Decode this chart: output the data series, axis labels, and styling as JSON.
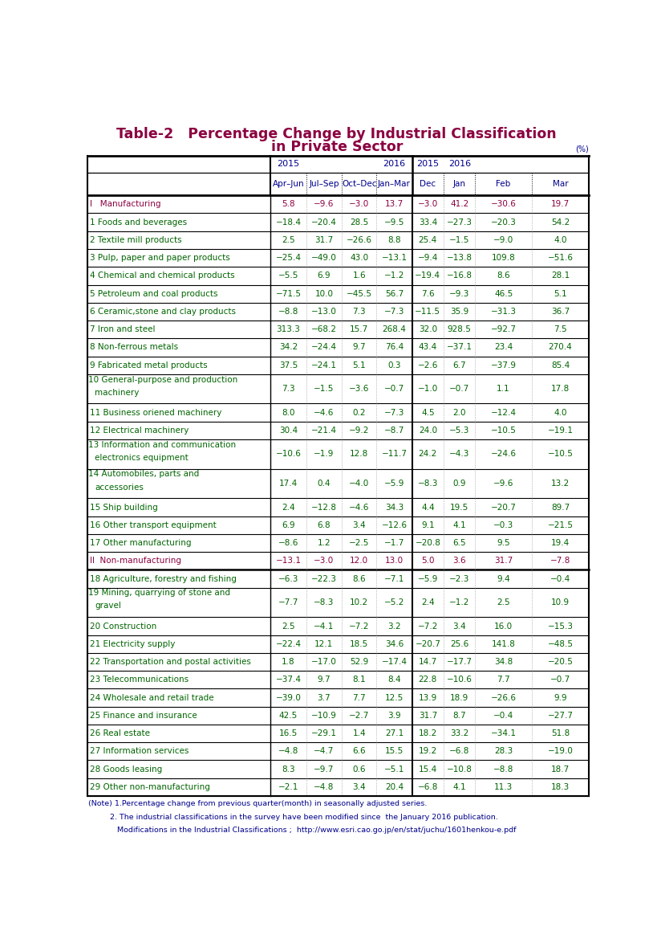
{
  "title_line1": "Table-2   Percentage Change by Industrial Classification",
  "title_line2": "in Private Sector",
  "title_color": "#8B0040",
  "unit_label": "(%)",
  "col_header_color": "#00008B",
  "rows": [
    {
      "label": "I   Manufacturing",
      "values": [
        "5.8",
        "−9.6",
        "−3.0",
        "13.7",
        "−3.0",
        "41.2",
        "−30.6",
        "19.7"
      ],
      "label_color": "#8B0040",
      "val_color": "#8B0040",
      "is_section": true,
      "multiline": false
    },
    {
      "label": "1 Foods and beverages",
      "values": [
        "−18.4",
        "−20.4",
        "28.5",
        "−9.5",
        "33.4",
        "−27.3",
        "−20.3",
        "54.2"
      ],
      "label_color": "#006400",
      "val_color": "#006400",
      "is_section": false,
      "multiline": false
    },
    {
      "label": "2 Textile mill products",
      "values": [
        "2.5",
        "31.7",
        "−26.6",
        "8.8",
        "25.4",
        "−1.5",
        "−9.0",
        "4.0"
      ],
      "label_color": "#006400",
      "val_color": "#006400",
      "is_section": false,
      "multiline": false
    },
    {
      "label": "3 Pulp, paper and paper products",
      "values": [
        "−25.4",
        "−49.0",
        "43.0",
        "−13.1",
        "−9.4",
        "−13.8",
        "109.8",
        "−51.6"
      ],
      "label_color": "#006400",
      "val_color": "#006400",
      "is_section": false,
      "multiline": false
    },
    {
      "label": "4 Chemical and chemical products",
      "values": [
        "−5.5",
        "6.9",
        "1.6",
        "−1.2",
        "−19.4",
        "−16.8",
        "8.6",
        "28.1"
      ],
      "label_color": "#006400",
      "val_color": "#006400",
      "is_section": false,
      "multiline": false
    },
    {
      "label": "5 Petroleum and coal products",
      "values": [
        "−71.5",
        "10.0",
        "−45.5",
        "56.7",
        "7.6",
        "−9.3",
        "46.5",
        "5.1"
      ],
      "label_color": "#006400",
      "val_color": "#006400",
      "is_section": false,
      "multiline": false
    },
    {
      "label": "6 Ceramic,stone and clay products",
      "values": [
        "−8.8",
        "−13.0",
        "7.3",
        "−7.3",
        "−11.5",
        "35.9",
        "−31.3",
        "36.7"
      ],
      "label_color": "#006400",
      "val_color": "#006400",
      "is_section": false,
      "multiline": false
    },
    {
      "label": "7 Iron and steel",
      "values": [
        "313.3",
        "−68.2",
        "15.7",
        "268.4",
        "32.0",
        "928.5",
        "−92.7",
        "7.5"
      ],
      "label_color": "#006400",
      "val_color": "#006400",
      "is_section": false,
      "multiline": false
    },
    {
      "label": "8 Non-ferrous metals",
      "values": [
        "34.2",
        "−24.4",
        "9.7",
        "76.4",
        "43.4",
        "−37.1",
        "23.4",
        "270.4"
      ],
      "label_color": "#006400",
      "val_color": "#006400",
      "is_section": false,
      "multiline": false
    },
    {
      "label": "9 Fabricated metal products",
      "values": [
        "37.5",
        "−24.1",
        "5.1",
        "0.3",
        "−2.6",
        "6.7",
        "−37.9",
        "85.4"
      ],
      "label_color": "#006400",
      "val_color": "#006400",
      "is_section": false,
      "multiline": false
    },
    {
      "label1": "10 General-purpose and production",
      "label2": "    machinery",
      "values": [
        "7.3",
        "−1.5",
        "−3.6",
        "−0.7",
        "−1.0",
        "−0.7",
        "1.1",
        "17.8"
      ],
      "label_color": "#006400",
      "val_color": "#006400",
      "is_section": false,
      "multiline": true
    },
    {
      "label": "11 Business oriened machinery",
      "values": [
        "8.0",
        "−4.6",
        "0.2",
        "−7.3",
        "4.5",
        "2.0",
        "−12.4",
        "4.0"
      ],
      "label_color": "#006400",
      "val_color": "#006400",
      "is_section": false,
      "multiline": false
    },
    {
      "label": "12 Electrical machinery",
      "values": [
        "30.4",
        "−21.4",
        "−9.2",
        "−8.7",
        "24.0",
        "−5.3",
        "−10.5",
        "−19.1"
      ],
      "label_color": "#006400",
      "val_color": "#006400",
      "is_section": false,
      "multiline": false
    },
    {
      "label1": "13 Information and communication",
      "label2": "    electronics equipment",
      "values": [
        "−10.6",
        "−1.9",
        "12.8",
        "−11.7",
        "24.2",
        "−4.3",
        "−24.6",
        "−10.5"
      ],
      "label_color": "#006400",
      "val_color": "#006400",
      "is_section": false,
      "multiline": true
    },
    {
      "label1": "14 Automobiles, parts and",
      "label2": "    accessories",
      "values": [
        "17.4",
        "0.4",
        "−4.0",
        "−5.9",
        "−8.3",
        "0.9",
        "−9.6",
        "13.2"
      ],
      "label_color": "#006400",
      "val_color": "#006400",
      "is_section": false,
      "multiline": true
    },
    {
      "label": "15 Ship building",
      "values": [
        "2.4",
        "−12.8",
        "−4.6",
        "34.3",
        "4.4",
        "19.5",
        "−20.7",
        "89.7"
      ],
      "label_color": "#006400",
      "val_color": "#006400",
      "is_section": false,
      "multiline": false
    },
    {
      "label": "16 Other transport equipment",
      "values": [
        "6.9",
        "6.8",
        "3.4",
        "−12.6",
        "9.1",
        "4.1",
        "−0.3",
        "−21.5"
      ],
      "label_color": "#006400",
      "val_color": "#006400",
      "is_section": false,
      "multiline": false
    },
    {
      "label": "17 Other manufacturing",
      "values": [
        "−8.6",
        "1.2",
        "−2.5",
        "−1.7",
        "−20.8",
        "6.5",
        "9.5",
        "19.4"
      ],
      "label_color": "#006400",
      "val_color": "#006400",
      "is_section": false,
      "multiline": false
    },
    {
      "label": "II  Non-manufacturing",
      "values": [
        "−13.1",
        "−3.0",
        "12.0",
        "13.0",
        "5.0",
        "3.6",
        "31.7",
        "−7.8"
      ],
      "label_color": "#8B0040",
      "val_color": "#8B0040",
      "is_section": true,
      "multiline": false
    },
    {
      "label": "18 Agriculture, forestry and fishing",
      "values": [
        "−6.3",
        "−22.3",
        "8.6",
        "−7.1",
        "−5.9",
        "−2.3",
        "9.4",
        "−0.4"
      ],
      "label_color": "#006400",
      "val_color": "#006400",
      "is_section": false,
      "multiline": false
    },
    {
      "label1": "19 Mining, quarrying of stone and",
      "label2": "    gravel",
      "values": [
        "−7.7",
        "−8.3",
        "10.2",
        "−5.2",
        "2.4",
        "−1.2",
        "2.5",
        "10.9"
      ],
      "label_color": "#006400",
      "val_color": "#006400",
      "is_section": false,
      "multiline": true
    },
    {
      "label": "20 Construction",
      "values": [
        "2.5",
        "−4.1",
        "−7.2",
        "3.2",
        "−7.2",
        "3.4",
        "16.0",
        "−15.3"
      ],
      "label_color": "#006400",
      "val_color": "#006400",
      "is_section": false,
      "multiline": false
    },
    {
      "label": "21 Electricity supply",
      "values": [
        "−22.4",
        "12.1",
        "18.5",
        "34.6",
        "−20.7",
        "25.6",
        "141.8",
        "−48.5"
      ],
      "label_color": "#006400",
      "val_color": "#006400",
      "is_section": false,
      "multiline": false
    },
    {
      "label": "22 Transportation and postal activities",
      "values": [
        "1.8",
        "−17.0",
        "52.9",
        "−17.4",
        "14.7",
        "−17.7",
        "34.8",
        "−20.5"
      ],
      "label_color": "#006400",
      "val_color": "#006400",
      "is_section": false,
      "multiline": false
    },
    {
      "label": "23 Telecommunications",
      "values": [
        "−37.4",
        "9.7",
        "8.1",
        "8.4",
        "22.8",
        "−10.6",
        "7.7",
        "−0.7"
      ],
      "label_color": "#006400",
      "val_color": "#006400",
      "is_section": false,
      "multiline": false
    },
    {
      "label": "24 Wholesale and retail trade",
      "values": [
        "−39.0",
        "3.7",
        "7.7",
        "12.5",
        "13.9",
        "18.9",
        "−26.6",
        "9.9"
      ],
      "label_color": "#006400",
      "val_color": "#006400",
      "is_section": false,
      "multiline": false
    },
    {
      "label": "25 Finance and insurance",
      "values": [
        "42.5",
        "−10.9",
        "−2.7",
        "3.9",
        "31.7",
        "8.7",
        "−0.4",
        "−27.7"
      ],
      "label_color": "#006400",
      "val_color": "#006400",
      "is_section": false,
      "multiline": false
    },
    {
      "label": "26 Real estate",
      "values": [
        "16.5",
        "−29.1",
        "1.4",
        "27.1",
        "18.2",
        "33.2",
        "−34.1",
        "51.8"
      ],
      "label_color": "#006400",
      "val_color": "#006400",
      "is_section": false,
      "multiline": false
    },
    {
      "label": "27 Information services",
      "values": [
        "−4.8",
        "−4.7",
        "6.6",
        "15.5",
        "19.2",
        "−6.8",
        "28.3",
        "−19.0"
      ],
      "label_color": "#006400",
      "val_color": "#006400",
      "is_section": false,
      "multiline": false
    },
    {
      "label": "28 Goods leasing",
      "values": [
        "8.3",
        "−9.7",
        "0.6",
        "−5.1",
        "15.4",
        "−10.8",
        "−8.8",
        "18.7"
      ],
      "label_color": "#006400",
      "val_color": "#006400",
      "is_section": false,
      "multiline": false
    },
    {
      "label": "29 Other non-manufacturing",
      "values": [
        "−2.1",
        "−4.8",
        "3.4",
        "20.4",
        "−6.8",
        "4.1",
        "11.3",
        "18.3"
      ],
      "label_color": "#006400",
      "val_color": "#006400",
      "is_section": false,
      "multiline": false
    }
  ],
  "note_lines": [
    "(Note) 1.Percentage change from previous quarter(month) in seasonally adjusted series.",
    "         2. The industrial classifications in the survey have been modified since  the January 2016 publication.",
    "            Modifications in the Industrial Classifications ;  http://www.esri.cao.go.jp/en/stat/juchu/1601henkou-e.pdf"
  ],
  "note_color": "#00008B",
  "background_color": "#ffffff"
}
